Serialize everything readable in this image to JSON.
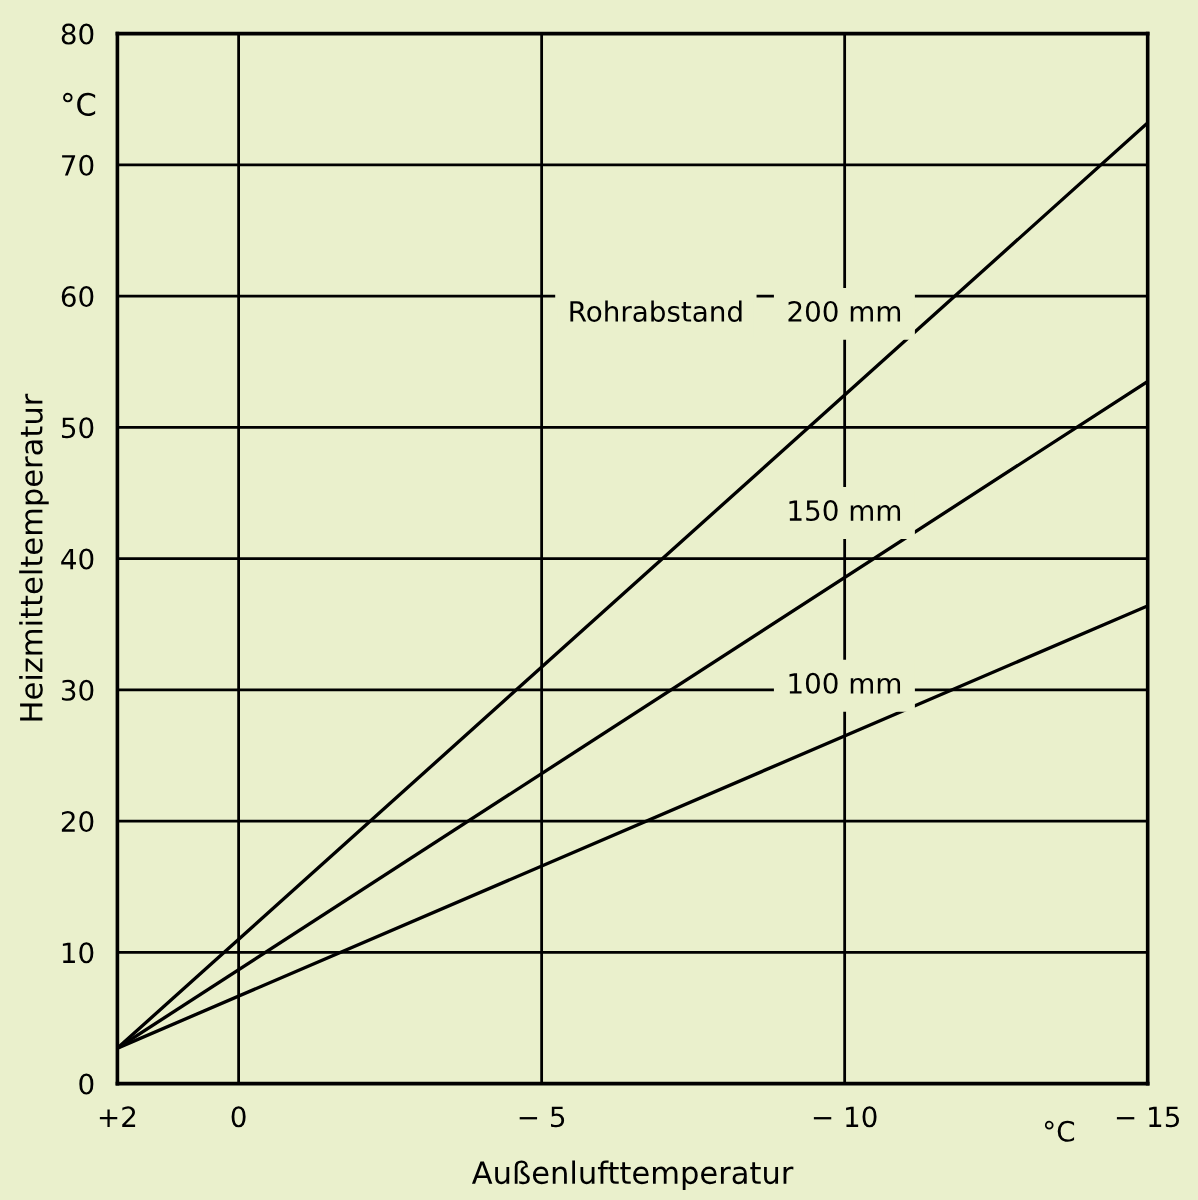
{
  "chart_data": {
    "type": "line",
    "xlabel": "Außenlufttemperatur",
    "ylabel": "Heizmitteltemperatur",
    "annotations": [
      "Rohrabstand",
      "°C",
      "°C"
    ],
    "x": [
      2,
      -15
    ],
    "series": [
      {
        "name": "200 mm",
        "color": "#000000",
        "values": [
          2.7,
          73.2
        ]
      },
      {
        "name": "150 mm",
        "color": "#000000",
        "values": [
          2.7,
          53.5
        ]
      },
      {
        "name": "100 mm",
        "color": "#000000",
        "values": [
          2.7,
          36.4
        ]
      }
    ],
    "xlim": [
      2,
      -15
    ],
    "xticks": [
      {
        "value": 2,
        "label": "+2"
      },
      0,
      {
        "value": -5,
        "label": "− 5"
      },
      {
        "value": -10,
        "label": "− 10"
      },
      {
        "value": -15,
        "label": "− 15"
      }
    ],
    "ylim": [
      0,
      80
    ],
    "yticks": [
      0,
      10,
      20,
      30,
      40,
      50,
      60,
      70,
      80
    ],
    "grid": true,
    "legend": false,
    "marker": "none",
    "line_style": "solid"
  }
}
